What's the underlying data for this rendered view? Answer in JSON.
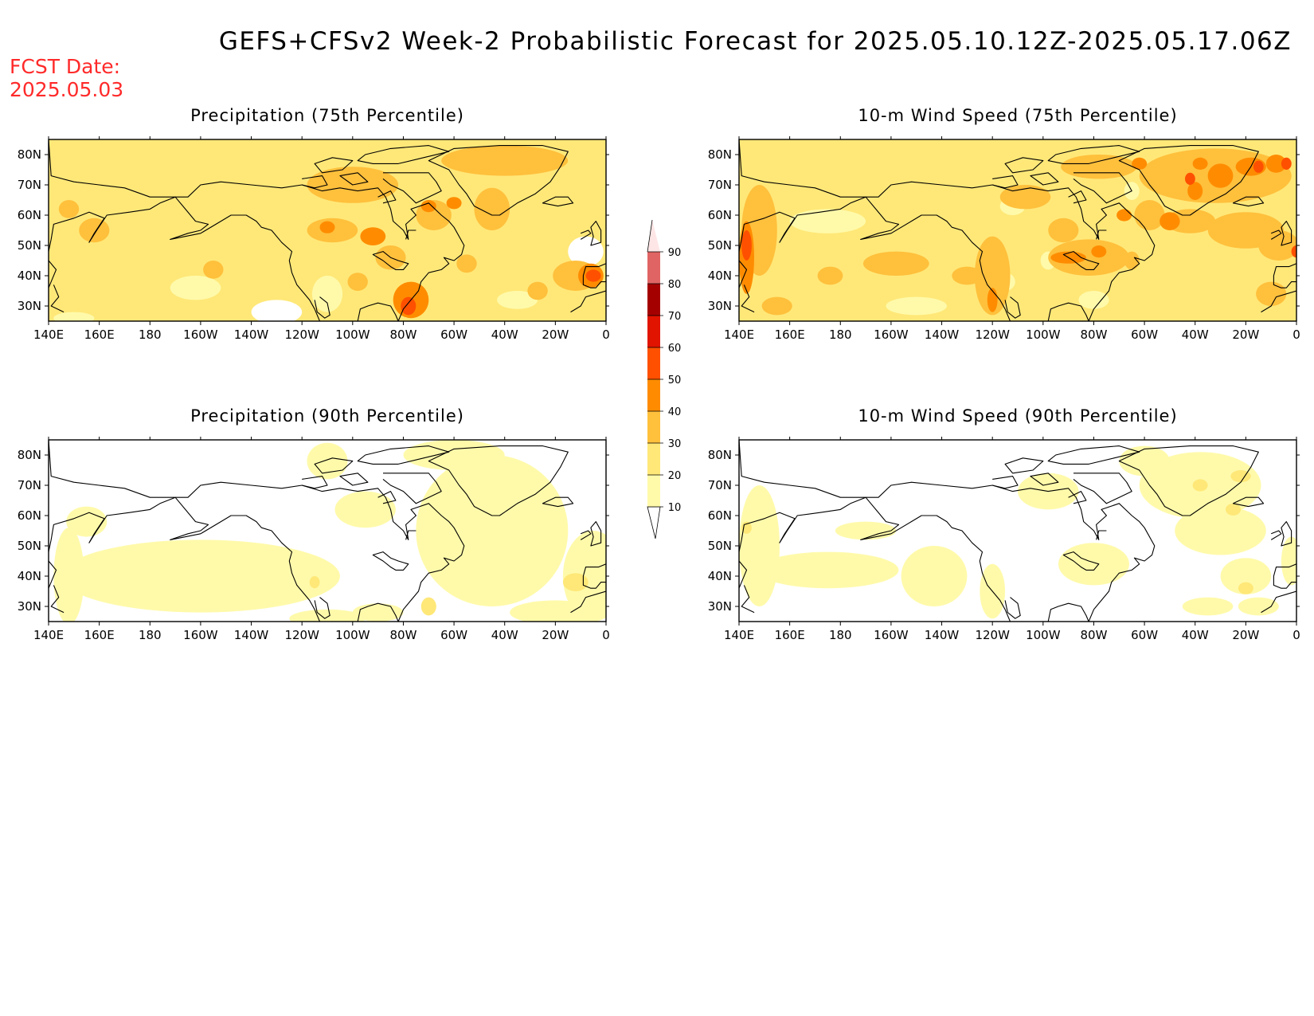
{
  "title": "GEFS+CFSv2 Week-2 Probabilistic Forecast for 2025.05.10.12Z-2025.05.17.06Z",
  "forecast_date": {
    "label": "FCST Date:",
    "value": "2025.05.03"
  },
  "x_tick_labels": [
    "140E",
    "160E",
    "180",
    "160W",
    "140W",
    "120W",
    "100W",
    "80W",
    "60W",
    "40W",
    "20W",
    "0"
  ],
  "y_tick_labels": [
    "80N",
    "70N",
    "60N",
    "50N",
    "40N",
    "30N"
  ],
  "panels": [
    {
      "id": "precip-75",
      "title": "Precipitation (75th Percentile)"
    },
    {
      "id": "wind-75",
      "title": "10-m Wind Speed (75th Percentile)"
    },
    {
      "id": "precip-90",
      "title": "Precipitation (90th Percentile)"
    },
    {
      "id": "wind-90",
      "title": "10-m Wind Speed (90th Percentile)"
    }
  ],
  "colorbar": {
    "levels": [
      "10",
      "20",
      "30",
      "40",
      "50",
      "60",
      "70",
      "80",
      "90"
    ],
    "colors": [
      "#fffaaa",
      "#ffe878",
      "#ffc03c",
      "#ff8c00",
      "#ff5000",
      "#e11400",
      "#a50000",
      "#e16464",
      "#f0a0a0",
      "#ffe6e6"
    ]
  }
}
